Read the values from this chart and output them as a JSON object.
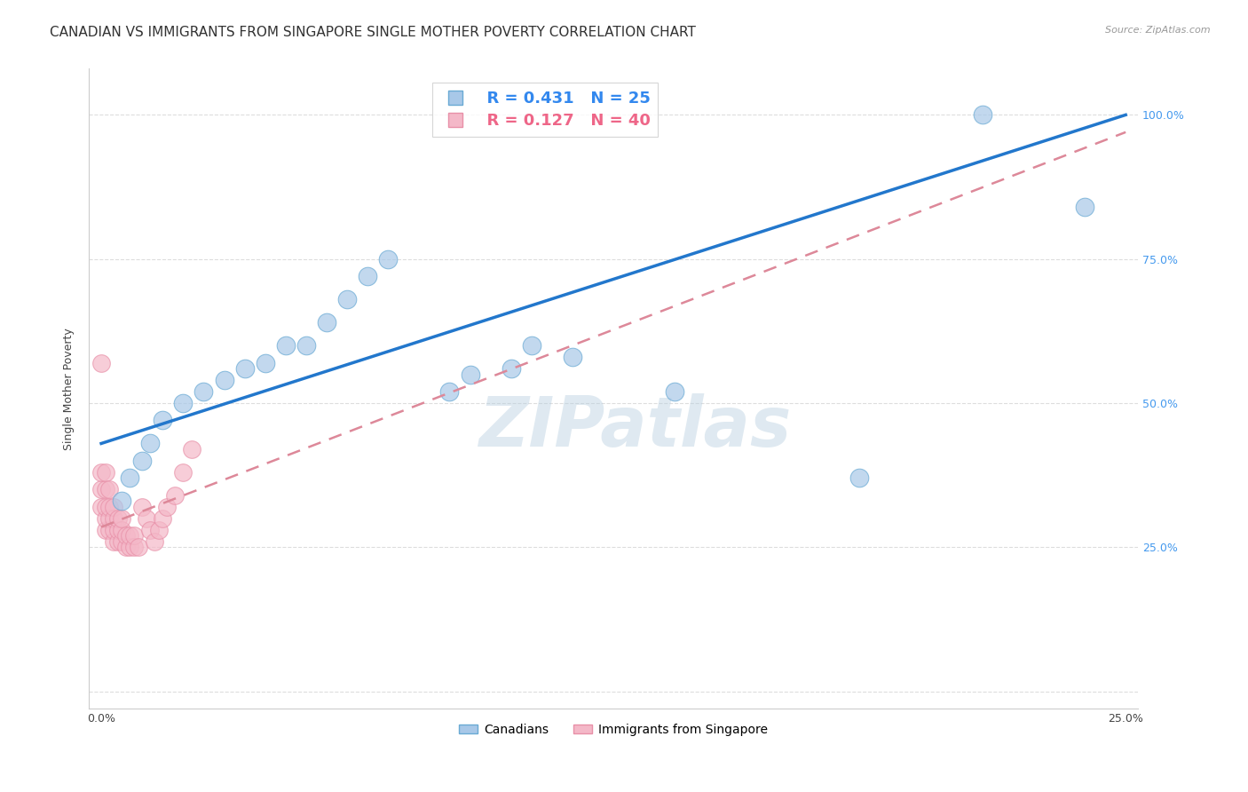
{
  "title": "CANADIAN VS IMMIGRANTS FROM SINGAPORE SINGLE MOTHER POVERTY CORRELATION CHART",
  "source": "Source: ZipAtlas.com",
  "ylabel": "Single Mother Poverty",
  "ytick_vals": [
    0.0,
    0.25,
    0.5,
    0.75,
    1.0
  ],
  "ytick_labels": [
    "",
    "25.0%",
    "50.0%",
    "75.0%",
    "100.0%"
  ],
  "xtick_vals": [
    0.0,
    0.25
  ],
  "xtick_labels": [
    "0.0%",
    "25.0%"
  ],
  "legend_R1": "R = 0.431",
  "legend_N1": "N = 25",
  "legend_R2": "R = 0.127",
  "legend_N2": "N = 40",
  "legend_label1": "Canadians",
  "legend_label2": "Immigrants from Singapore",
  "canadian_color": "#a8c8e8",
  "canadian_edge": "#6aaad4",
  "singapore_color": "#f4b8c8",
  "singapore_edge": "#e890a8",
  "reg_canadian_color": "#2277cc",
  "reg_singapore_color": "#dd8899",
  "canadian_x": [
    0.005,
    0.007,
    0.01,
    0.012,
    0.015,
    0.02,
    0.025,
    0.03,
    0.035,
    0.04,
    0.045,
    0.05,
    0.055,
    0.06,
    0.065,
    0.07,
    0.085,
    0.09,
    0.1,
    0.105,
    0.115,
    0.14,
    0.185,
    0.215,
    0.24
  ],
  "canadian_y": [
    0.33,
    0.37,
    0.4,
    0.43,
    0.47,
    0.5,
    0.52,
    0.54,
    0.56,
    0.57,
    0.6,
    0.6,
    0.64,
    0.68,
    0.72,
    0.75,
    0.52,
    0.55,
    0.56,
    0.6,
    0.58,
    0.52,
    0.37,
    1.0,
    0.84
  ],
  "singapore_x": [
    0.0,
    0.0,
    0.0,
    0.001,
    0.001,
    0.001,
    0.001,
    0.001,
    0.002,
    0.002,
    0.002,
    0.002,
    0.003,
    0.003,
    0.003,
    0.003,
    0.004,
    0.004,
    0.004,
    0.005,
    0.005,
    0.005,
    0.006,
    0.006,
    0.007,
    0.007,
    0.008,
    0.008,
    0.009,
    0.01,
    0.011,
    0.012,
    0.013,
    0.014,
    0.015,
    0.016,
    0.018,
    0.02,
    0.022,
    0.0
  ],
  "singapore_y": [
    0.32,
    0.35,
    0.38,
    0.28,
    0.3,
    0.32,
    0.35,
    0.38,
    0.28,
    0.3,
    0.32,
    0.35,
    0.26,
    0.28,
    0.3,
    0.32,
    0.26,
    0.28,
    0.3,
    0.26,
    0.28,
    0.3,
    0.25,
    0.27,
    0.25,
    0.27,
    0.25,
    0.27,
    0.25,
    0.32,
    0.3,
    0.28,
    0.26,
    0.28,
    0.3,
    0.32,
    0.34,
    0.38,
    0.42,
    0.57
  ],
  "can_line_x": [
    0.0,
    0.25
  ],
  "can_line_y": [
    0.43,
    1.0
  ],
  "sing_line_x": [
    0.0,
    0.25
  ],
  "sing_line_y": [
    0.285,
    0.97
  ],
  "watermark": "ZIPatlas",
  "bg_color": "#ffffff",
  "grid_color": "#dddddd",
  "title_fontsize": 11,
  "axis_label_fontsize": 9,
  "tick_fontsize": 9,
  "xlim": [
    -0.003,
    0.253
  ],
  "ylim": [
    -0.03,
    1.08
  ]
}
